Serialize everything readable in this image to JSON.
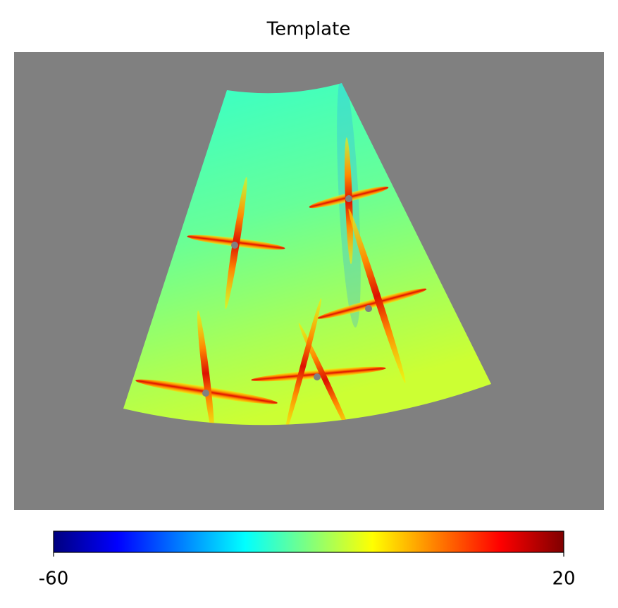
{
  "chart_data": {
    "type": "map",
    "title": "Template",
    "colorbar": {
      "lim": [
        -60,
        20
      ],
      "ticks": [
        -60,
        20
      ],
      "colormap": "jet"
    }
  }
}
